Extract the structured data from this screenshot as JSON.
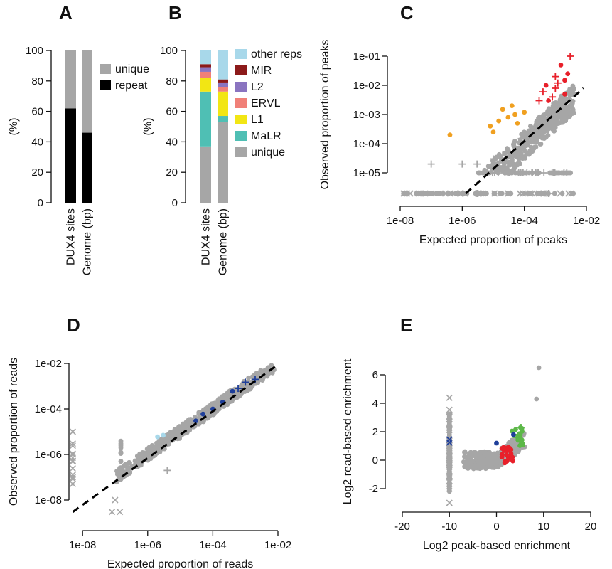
{
  "colors": {
    "unique": "#a6a6a6",
    "repeat": "#000000",
    "MaLR": "#4fbfb4",
    "L1": "#f2e614",
    "ERVL": "#f08078",
    "L2": "#8a74c0",
    "MIR": "#8c1a1a",
    "other_reps": "#a8d8ea",
    "red": "#e8202a",
    "orange": "#f0a020",
    "blue": "#1f3f9a",
    "lightblue": "#a8d8ea",
    "green": "#5cb848",
    "gray": "#a6a6a6"
  },
  "chart_data": [
    {
      "panel": "A",
      "type": "bar",
      "stacked": true,
      "categories": [
        "DUX4 sites",
        "Genome (bp)"
      ],
      "ylabel": "(%)",
      "ylim": [
        0,
        100
      ],
      "yticks": [
        "0",
        "20",
        "40",
        "60",
        "80",
        "100"
      ],
      "series": [
        {
          "name": "repeat",
          "values": [
            62,
            46
          ]
        },
        {
          "name": "unique",
          "values": [
            38,
            54
          ]
        }
      ],
      "legend": [
        "unique",
        "repeat"
      ]
    },
    {
      "panel": "B",
      "type": "bar",
      "stacked": true,
      "categories": [
        "DUX4 sites",
        "Genome (bp)"
      ],
      "ylabel": "(%)",
      "ylim": [
        0,
        100
      ],
      "yticks": [
        "0",
        "20",
        "40",
        "60",
        "80",
        "100"
      ],
      "series": [
        {
          "name": "unique",
          "values": [
            37,
            53
          ]
        },
        {
          "name": "MaLR",
          "values": [
            36,
            4
          ]
        },
        {
          "name": "L1",
          "values": [
            9,
            16
          ]
        },
        {
          "name": "ERVL",
          "values": [
            4,
            3
          ]
        },
        {
          "name": "L2",
          "values": [
            3,
            3
          ]
        },
        {
          "name": "MIR",
          "values": [
            2,
            2
          ]
        },
        {
          "name": "other reps",
          "values": [
            9,
            19
          ]
        }
      ],
      "legend": [
        "other reps",
        "MIR",
        "L2",
        "ERVL",
        "L1",
        "MaLR",
        "unique"
      ]
    },
    {
      "panel": "C",
      "type": "scatter",
      "xscale": "log",
      "yscale": "log",
      "xlabel": "Expected proportion of peaks",
      "ylabel": "Observed proportion of peaks",
      "xlim": [
        1e-09,
        0.01
      ],
      "ylim": [
        1e-06,
        0.2
      ],
      "xticks": [
        "1e-08",
        "1e-06",
        "1e-04",
        "1e-02"
      ],
      "yticks": [
        "1e-05",
        "1e-04",
        "1e-03",
        "1e-02",
        "1e-01"
      ],
      "reference_line": "y = x (dashed)",
      "series": [
        {
          "values": [
            [
              4e-07,
              0.0002
            ],
            [
              1e-05,
              0.00025
            ],
            [
              3e-05,
              0.0008
            ],
            [
              5e-05,
              0.001
            ],
            [
              0.0001,
              0.0012
            ],
            [
              1.5e-05,
              0.0006
            ],
            [
              8e-06,
              0.0004
            ],
            [
              2e-05,
              0.0015
            ],
            [
              4e-05,
              0.002
            ],
            [
              6e-05,
              0.0005
            ]
          ]
        },
        {
          "values": [
            [
              0.0003,
              0.003
            ],
            [
              0.0005,
              0.01
            ],
            [
              0.001,
              0.02
            ],
            [
              0.002,
              0.015
            ],
            [
              0.003,
              0.1
            ],
            [
              0.0015,
              0.05
            ],
            [
              0.0008,
              0.004
            ],
            [
              0.002,
              0.005
            ],
            [
              0.0004,
              0.006
            ],
            [
              0.0006,
              0.003
            ],
            [
              0.001,
              0.008
            ],
            [
              0.0025,
              0.025
            ],
            [
              0.0012,
              0.012
            ]
          ]
        },
        {
          "values": [
            [
              1e-06,
              2e-05
            ],
            [
              1e-05,
              3e-05
            ],
            [
              0.0001,
              0.0001
            ],
            [
              0.001,
              0.001
            ],
            [
              0.0003,
              0.0005
            ],
            [
              5e-05,
              8e-05
            ],
            [
              0.0002,
              0.0002
            ],
            [
              0.003,
              0.002
            ],
            [
              0.0005,
              0.0004
            ],
            [
              1e-05,
              2e-05
            ],
            [
              1e-07,
              2e-05
            ],
            [
              3e-06,
              2e-05
            ],
            [
              8e-05,
              0.00015
            ],
            [
              2e-05,
              4e-05
            ],
            [
              0.0006,
              0.0012
            ]
          ]
        },
        {
          "values": [
            [
              1e-09,
              2e-06
            ],
            [
              1e-07,
              2e-06
            ],
            [
              1e-05,
              2e-06
            ],
            [
              0.001,
              2e-06
            ],
            [
              0.003,
              2e-06
            ]
          ]
        }
      ]
    },
    {
      "panel": "D",
      "type": "scatter",
      "xscale": "log",
      "yscale": "log",
      "xlabel": "Expected proportion of reads",
      "ylabel": "Observed proportion of reads",
      "xlim": [
        1e-09,
        0.01
      ],
      "ylim": [
        1e-08,
        0.01
      ],
      "xticks": [
        "1e-08",
        "1e-06",
        "1e-04",
        "1e-02"
      ],
      "yticks": [
        "1e-08",
        "1e-06",
        "1e-04",
        "1e-02"
      ],
      "reference_line": "y = x (dashed)",
      "series": [
        {
          "values": [
            [
              3e-05,
              3e-05
            ],
            [
              5e-05,
              6e-05
            ],
            [
              0.0001,
              0.0001
            ],
            [
              0.0002,
              0.0002
            ],
            [
              0.0004,
              0.0006
            ],
            [
              0.0006,
              0.0008
            ],
            [
              0.001,
              0.0015
            ],
            [
              0.002,
              0.002
            ]
          ]
        },
        {
          "values": [
            [
              2e-06,
              6e-06
            ],
            [
              3e-06,
              7e-06
            ]
          ]
        },
        {
          "values": [
            [
              1e-07,
              1e-07
            ],
            [
              1e-06,
              1e-06
            ],
            [
              1e-05,
              1e-05
            ],
            [
              0.0001,
              0.0001
            ],
            [
              0.001,
              0.001
            ],
            [
              0.005,
              0.005
            ],
            [
              5e-07,
              3e-07
            ],
            [
              3e-06,
              4e-06
            ],
            [
              3e-05,
              2e-05
            ],
            [
              0.0003,
              0.0002
            ]
          ]
        },
        {
          "values": [
            [
              5e-09,
              1e-07
            ],
            [
              5e-09,
              1e-06
            ],
            [
              5e-09,
              3e-06
            ],
            [
              5e-09,
              1e-05
            ],
            [
              1e-07,
              1e-08
            ]
          ]
        }
      ]
    },
    {
      "panel": "E",
      "type": "scatter",
      "xlabel": "Log2 peak-based enrichment",
      "ylabel": "Log2 read-based enrichment",
      "xlim": [
        -20,
        20
      ],
      "ylim": [
        -3,
        7
      ],
      "xticks": [
        "-20",
        "-10",
        "0",
        "10",
        "20"
      ],
      "yticks": [
        "-2",
        "0",
        "2",
        "4",
        "6"
      ],
      "series": [
        {
          "values": [
            [
              -10,
              4.4
            ],
            [
              -10,
              3
            ],
            [
              -10,
              2
            ],
            [
              -10,
              1
            ],
            [
              -10,
              0
            ],
            [
              -10,
              -1
            ],
            [
              -10,
              -2
            ],
            [
              -10,
              -3
            ],
            [
              0,
              0.5
            ],
            [
              2,
              0.8
            ],
            [
              4,
              1
            ],
            [
              6,
              2
            ],
            [
              8,
              4.2
            ],
            [
              9,
              6.5
            ],
            [
              -3,
              0
            ],
            [
              -5,
              -0.2
            ],
            [
              1,
              -0.3
            ]
          ]
        },
        {
          "values": [
            [
              1,
              0.2
            ],
            [
              2,
              0
            ],
            [
              2.5,
              0.5
            ],
            [
              3,
              0.8
            ],
            [
              1.5,
              0.3
            ]
          ]
        },
        {
          "values": [
            [
              4,
              1.5
            ],
            [
              5,
              2.4
            ],
            [
              3.5,
              1
            ],
            [
              4.5,
              2
            ],
            [
              6,
              2.2
            ]
          ]
        },
        {
          "values": [
            [
              -10,
              1.2
            ],
            [
              -10,
              1.4
            ],
            [
              0,
              1.2
            ],
            [
              3,
              1.8
            ]
          ]
        }
      ]
    }
  ]
}
